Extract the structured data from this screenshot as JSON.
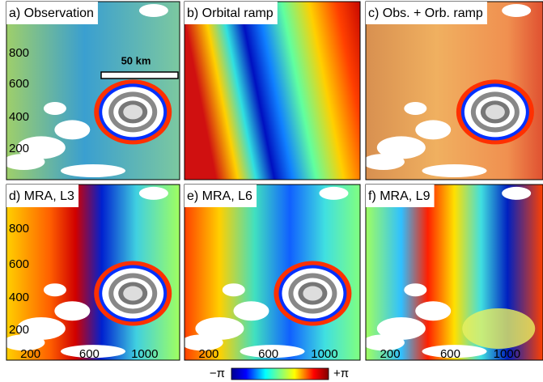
{
  "panels": [
    {
      "label": "a) Observation"
    },
    {
      "label": "b) Orbital ramp"
    },
    {
      "label": "c) Obs. + Orb. ramp"
    },
    {
      "label": "d) MRA, L3"
    },
    {
      "label": "e) MRA, L6"
    },
    {
      "label": "f) MRA, L9"
    }
  ],
  "yticks": [
    800,
    600,
    400,
    200
  ],
  "xticks": [
    200,
    600,
    1000
  ],
  "scalebar": "50 km",
  "colorbar": {
    "min": "−π",
    "max": "+π"
  }
}
